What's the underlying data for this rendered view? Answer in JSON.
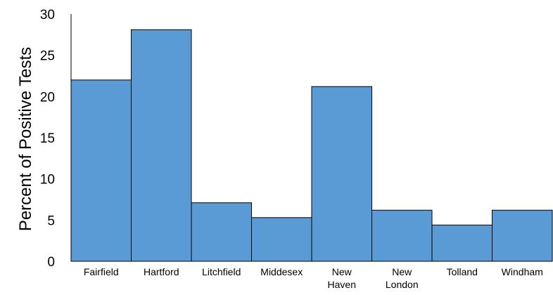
{
  "chart_data": {
    "type": "bar",
    "categories": [
      [
        "Fairfield"
      ],
      [
        "Hartford"
      ],
      [
        "Litchfield"
      ],
      [
        "Middesex"
      ],
      [
        "New",
        "Haven"
      ],
      [
        "New",
        "London"
      ],
      [
        "Tolland"
      ],
      [
        "Windham"
      ]
    ],
    "values": [
      22,
      28.1,
      7.1,
      5.3,
      21.2,
      6.2,
      4.4,
      6.2
    ],
    "title": "",
    "xlabel": "",
    "ylabel": "Percent  of Positive Tests",
    "ylim": [
      0,
      30
    ],
    "yticks": [
      0,
      5,
      10,
      15,
      20,
      25,
      30
    ],
    "grid": false,
    "bar_color": "#5b9bd5",
    "bar_edge_color": "#000000"
  }
}
